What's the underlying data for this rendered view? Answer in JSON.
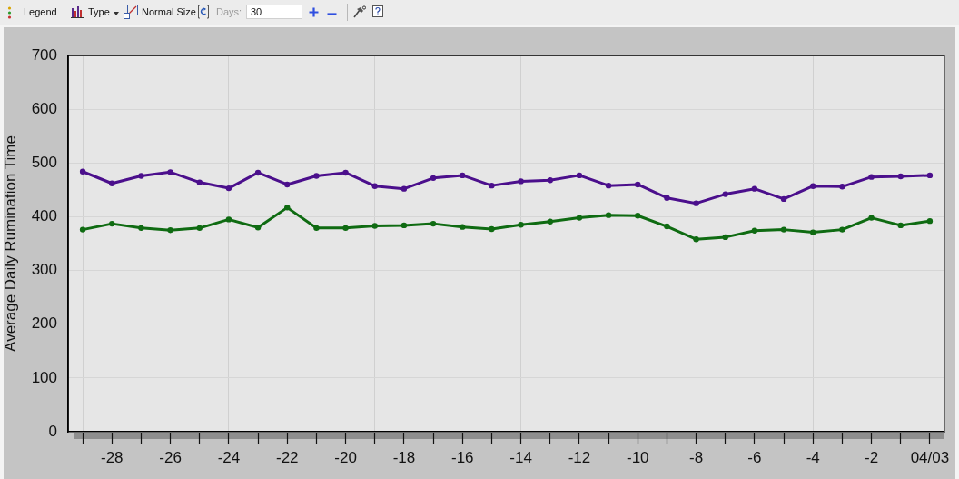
{
  "chart_data": {
    "type": "line",
    "ylabel": "Average Daily Rumination Time",
    "categories": [
      null,
      "-28",
      null,
      "-26",
      null,
      "-24",
      null,
      "-22",
      null,
      "-20",
      null,
      "-18",
      null,
      "-16",
      null,
      "-14",
      null,
      "-12",
      null,
      "-10",
      null,
      "-8",
      null,
      "-6",
      null,
      "-4",
      null,
      "-2",
      null,
      "04/03"
    ],
    "series": [
      {
        "color": "#4b0f8c",
        "values": [
          484,
          462,
          476,
          483,
          464,
          453,
          482,
          460,
          476,
          482,
          457,
          452,
          472,
          477,
          458,
          466,
          468,
          477,
          458,
          460,
          435,
          425,
          442,
          452,
          433,
          457,
          456,
          474,
          475,
          477
        ]
      },
      {
        "color": "#0f6b12",
        "values": [
          376,
          387,
          379,
          375,
          379,
          395,
          380,
          417,
          379,
          379,
          383,
          384,
          387,
          381,
          377,
          385,
          391,
          398,
          403,
          402,
          382,
          358,
          362,
          374,
          376,
          371,
          376,
          398,
          384,
          392
        ]
      }
    ],
    "ylim": [
      0,
      700
    ],
    "yticks": [
      0,
      100,
      200,
      300,
      400,
      500,
      600,
      700
    ],
    "grid": true,
    "marker": "circle",
    "line_style": "solid",
    "annotations": [
      "Legend",
      "Type",
      "Normal Size",
      "Days:",
      "30"
    ]
  }
}
